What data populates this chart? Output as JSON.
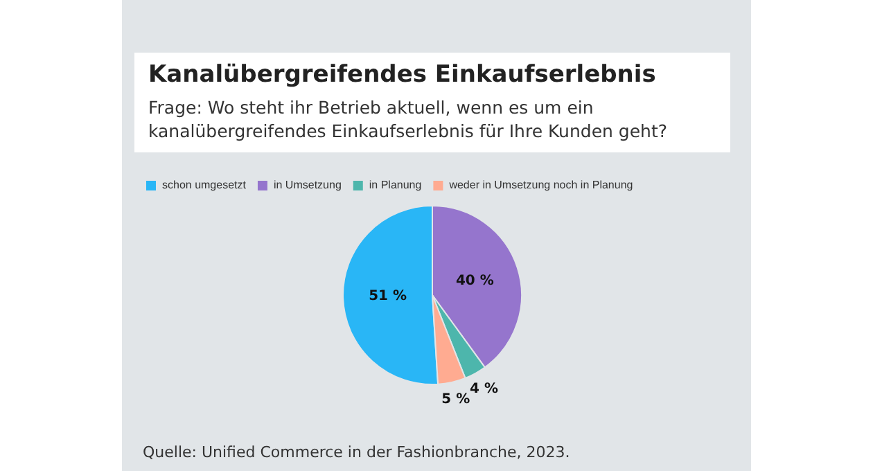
{
  "chart_data": {
    "type": "pie",
    "title": "Kanalübergreifendes Einkaufserlebnis",
    "subtitle": "Frage: Wo steht ihr Betrieb aktuell, wenn es um ein kanalübergreifendes Einkaufserlebnis für Ihre Kunden geht?",
    "categories": [
      "schon umgesetzt",
      "in Umsetzung",
      "in Planung",
      "weder in Umsetzung noch in Planung"
    ],
    "values": [
      51,
      40,
      4,
      5
    ],
    "value_labels": [
      "51 %",
      "40 %",
      "4 %",
      "5 %"
    ],
    "colors": [
      "#29b6f6",
      "#9575cd",
      "#4db6ac",
      "#ffab91"
    ],
    "legend": "top",
    "annotations": [
      "Quelle: Unified Commerce in der Fashionbranche, 2023."
    ]
  }
}
